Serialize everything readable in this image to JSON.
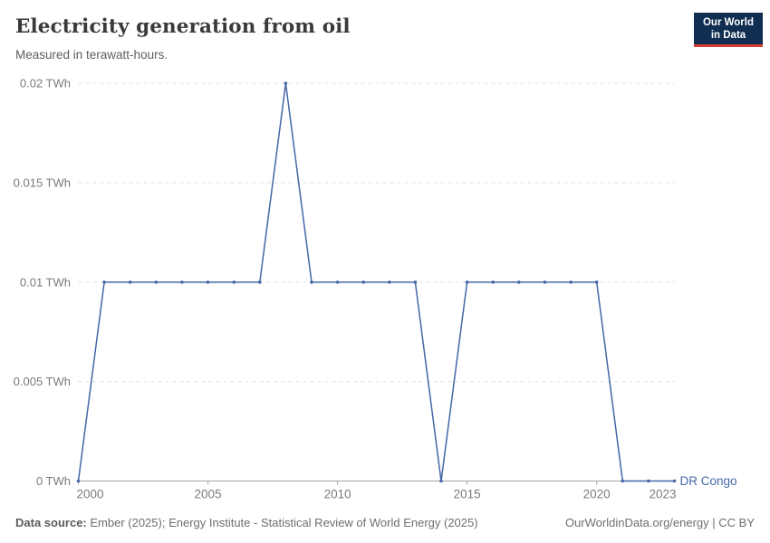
{
  "header": {
    "title": "Electricity generation from oil",
    "subtitle": "Measured in terawatt-hours."
  },
  "logo": {
    "line1": "Our World",
    "line2": "in Data",
    "background": "#102d52",
    "accent": "#dc3d33"
  },
  "footer": {
    "source_label": "Data source:",
    "source_text": " Ember (2025); Energy Institute - Statistical Review of World Energy (2025)",
    "right_text": "OurWorldinData.org/energy | CC BY"
  },
  "chart_data": {
    "type": "line",
    "title": "Electricity generation from oil",
    "subtitle": "Measured in terawatt-hours.",
    "xlabel": "",
    "ylabel": "TWh",
    "xlim": [
      2000,
      2023
    ],
    "ylim": [
      0,
      0.02
    ],
    "grid": "horizontal dashed",
    "legend": "end-of-line entity label",
    "colors": {
      "grid": "#e0e0e0",
      "axis": "#a5a5a5",
      "tick_label": "#7a7a7a"
    },
    "y_ticks": [
      {
        "value": 0,
        "label": "0 TWh"
      },
      {
        "value": 0.005,
        "label": "0.005 TWh"
      },
      {
        "value": 0.01,
        "label": "0.01 TWh"
      },
      {
        "value": 0.015,
        "label": "0.015 TWh"
      },
      {
        "value": 0.02,
        "label": "0.02 TWh"
      }
    ],
    "x_ticks": [
      {
        "value": 2000,
        "label": "2000",
        "tick": true
      },
      {
        "value": 2005,
        "label": "2005",
        "tick": true
      },
      {
        "value": 2010,
        "label": "2010",
        "tick": true
      },
      {
        "value": 2015,
        "label": "2015",
        "tick": true
      },
      {
        "value": 2020,
        "label": "2020",
        "tick": true
      },
      {
        "value": 2023,
        "label": "2023",
        "tick": false
      }
    ],
    "series": [
      {
        "name": "DR Congo",
        "color": "#4467a5",
        "x": [
          2000,
          2001,
          2002,
          2003,
          2004,
          2005,
          2006,
          2007,
          2008,
          2009,
          2010,
          2011,
          2012,
          2013,
          2014,
          2015,
          2016,
          2017,
          2018,
          2019,
          2020,
          2021,
          2022,
          2023
        ],
        "values": [
          0,
          0.01,
          0.01,
          0.01,
          0.01,
          0.01,
          0.01,
          0.01,
          0.02,
          0.01,
          0.01,
          0.01,
          0.01,
          0.01,
          0,
          0.01,
          0.01,
          0.01,
          0.01,
          0.01,
          0.01,
          0,
          0,
          0
        ]
      }
    ]
  }
}
